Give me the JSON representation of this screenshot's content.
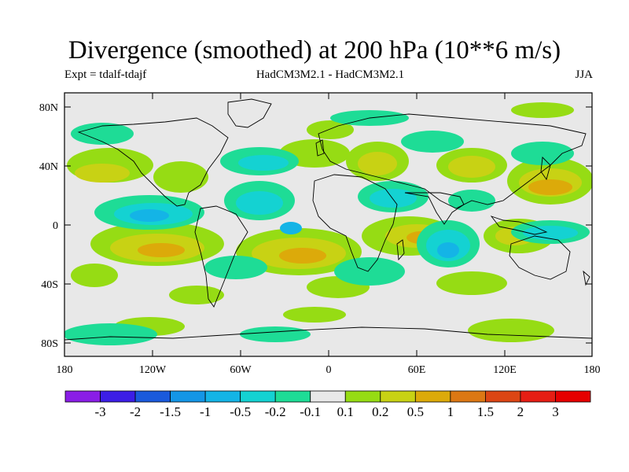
{
  "title": "Divergence (smoothed) at 200 hPa (10**6 m/s)",
  "experiment": "Expt = tdalf-tdajf",
  "models": "HadCM3M2.1 - HadCM3M2.1",
  "season": "JJA",
  "lat_axis": {
    "labels": [
      "80N",
      "40N",
      "0",
      "40S",
      "80S"
    ],
    "values": [
      80,
      40,
      0,
      -40,
      -80
    ],
    "range": [
      -90,
      90
    ]
  },
  "lon_axis": {
    "labels": [
      "180",
      "120W",
      "60W",
      "0",
      "60E",
      "120E",
      "180"
    ],
    "values": [
      -180,
      -120,
      -60,
      0,
      60,
      120,
      180
    ],
    "range": [
      -180,
      180
    ]
  },
  "colorbar": {
    "labels": [
      "-3",
      "-2",
      "-1.5",
      "-1",
      "-0.5",
      "-0.2",
      "-0.1",
      "0.1",
      "0.2",
      "0.5",
      "1",
      "1.5",
      "2",
      "3"
    ],
    "colors": [
      "#8a1ee6",
      "#3c1ee6",
      "#1a5adc",
      "#1496e6",
      "#14b4e6",
      "#14d2d2",
      "#1edc96",
      "#e8e8e8",
      "#96dc14",
      "#c8d214",
      "#dcaa0a",
      "#dc7814",
      "#dc4614",
      "#e61e14",
      "#e60000"
    ]
  },
  "colors": {
    "missing": "#e8e8e8",
    "coast": "#000000"
  }
}
